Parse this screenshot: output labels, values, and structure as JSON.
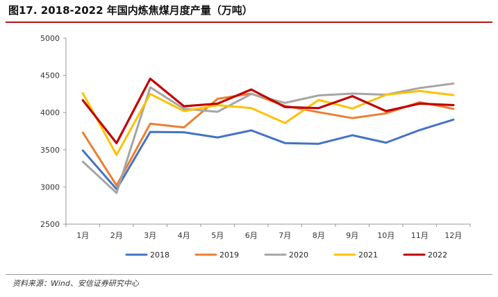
{
  "title": "图17. 2018-2022 年国内炼焦煤月度产量（万吨）",
  "source": "资料来源：Wind、安信证券研究中心",
  "chart_data": {
    "type": "line",
    "categories": [
      "1月",
      "2月",
      "3月",
      "4月",
      "5月",
      "6月",
      "7月",
      "8月",
      "9月",
      "10月",
      "11月",
      "12月"
    ],
    "ylim": [
      2500,
      5000
    ],
    "yticks": [
      2500,
      3000,
      3500,
      4000,
      4500,
      5000
    ],
    "grid": false,
    "legend_position": "bottom",
    "series": [
      {
        "name": "2018",
        "color": "#4472c4",
        "values": [
          3490,
          2970,
          3740,
          3735,
          3665,
          3760,
          3590,
          3580,
          3695,
          3595,
          3765,
          3905
        ]
      },
      {
        "name": "2019",
        "color": "#ed7d31",
        "values": [
          3730,
          3020,
          3850,
          3800,
          4185,
          4255,
          4090,
          4005,
          3925,
          3990,
          4140,
          4050
        ]
      },
      {
        "name": "2020",
        "color": "#a5a5a5",
        "values": [
          3340,
          2920,
          4340,
          4050,
          4010,
          4250,
          4130,
          4230,
          4255,
          4240,
          4330,
          4390
        ]
      },
      {
        "name": "2021",
        "color": "#ffc000",
        "values": [
          4260,
          3430,
          4250,
          4020,
          4100,
          4060,
          3860,
          4170,
          4055,
          4240,
          4290,
          4235
        ]
      },
      {
        "name": "2022",
        "color": "#c00000",
        "values": [
          4165,
          3590,
          4455,
          4085,
          4120,
          4310,
          4075,
          4060,
          4220,
          4020,
          4120,
          4100
        ]
      }
    ]
  }
}
